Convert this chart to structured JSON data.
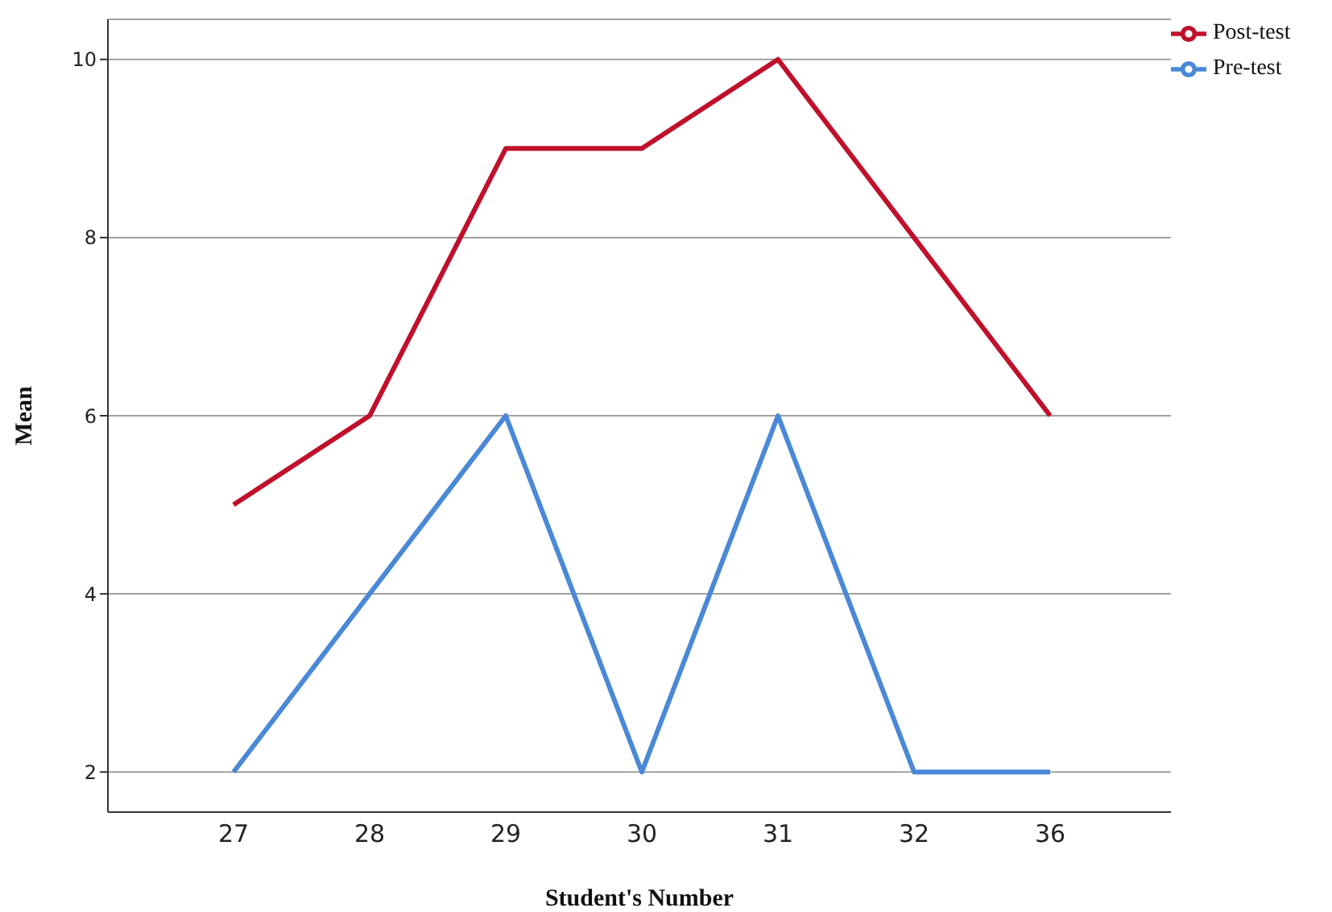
{
  "chart_data": {
    "type": "line",
    "xlabel": "Student's Number",
    "ylabel": "Mean",
    "categories": [
      "27",
      "28",
      "29",
      "30",
      "31",
      "32",
      "36"
    ],
    "series": [
      {
        "name": "Pre-test",
        "color": "#4a88d8",
        "values": [
          2,
          4,
          6,
          2,
          6,
          2,
          2
        ]
      },
      {
        "name": "Post-test",
        "color": "#c0102c",
        "values": [
          5,
          6,
          9,
          9,
          10,
          8,
          6
        ]
      }
    ],
    "ylim": [
      1.55,
      10.45
    ],
    "yticks": [
      2,
      4,
      6,
      8,
      10
    ],
    "grid": "y",
    "legend": "top right",
    "marker": "none",
    "line_style": "solid"
  }
}
